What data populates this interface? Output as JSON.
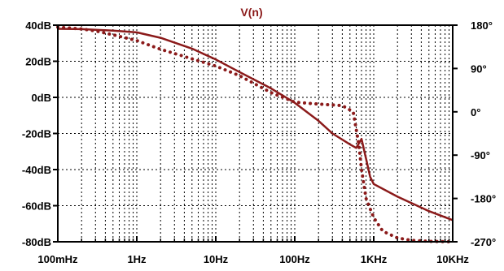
{
  "chart_data": {
    "type": "line",
    "title": "V(n)",
    "xscale": "log",
    "xlim": [
      0.1,
      10000
    ],
    "ylim_left": [
      -80,
      40
    ],
    "ylim_right": [
      -270,
      180
    ],
    "grid": true,
    "x_major_ticks": [
      0.1,
      1,
      10,
      100,
      1000,
      10000
    ],
    "x_tick_labels": [
      "100mHz",
      "1Hz",
      "10Hz",
      "100Hz",
      "1KHz",
      "10KHz"
    ],
    "y_left_ticks": [
      40,
      20,
      0,
      -20,
      -40,
      -60,
      -80
    ],
    "y_left_tick_labels": [
      "40dB",
      "20dB",
      "0dB",
      "-20dB",
      "-40dB",
      "-60dB",
      "-80dB"
    ],
    "y_right_ticks": [
      180,
      90,
      0,
      -90,
      -180,
      -270
    ],
    "y_right_tick_labels": [
      "180°",
      "90°",
      "0°",
      "-90°",
      "-180°",
      "-270°"
    ],
    "colors": {
      "trace": "#8b1a1a",
      "title": "#8b1a1a",
      "axis": "#000000",
      "grid": "#000000",
      "background": "#ffffff"
    },
    "series": [
      {
        "axis": "left",
        "style": "solid",
        "x": [
          0.1,
          0.2,
          0.5,
          1,
          2,
          5,
          10,
          20,
          50,
          100,
          200,
          300,
          500,
          600,
          700,
          800,
          900,
          1000,
          2000,
          5000,
          10000
        ],
        "y": [
          38,
          37.8,
          37,
          36,
          33,
          27,
          21,
          14,
          5,
          -3,
          -13,
          -20,
          -26,
          -28,
          -23,
          -34,
          -44,
          -48,
          -55,
          -63,
          -68
        ]
      },
      {
        "axis": "right",
        "style": "dotted",
        "x": [
          0.1,
          0.2,
          0.3,
          0.5,
          1,
          2,
          5,
          10,
          20,
          50,
          100,
          200,
          400,
          550,
          650,
          700,
          800,
          1000,
          1300,
          2000,
          3000,
          5000,
          10000
        ],
        "y": [
          176,
          172,
          168,
          160,
          148,
          130,
          110,
          95,
          75,
          40,
          20,
          16,
          13,
          0,
          -70,
          -120,
          -180,
          -220,
          -248,
          -262,
          -267,
          -269,
          -270
        ]
      }
    ]
  }
}
